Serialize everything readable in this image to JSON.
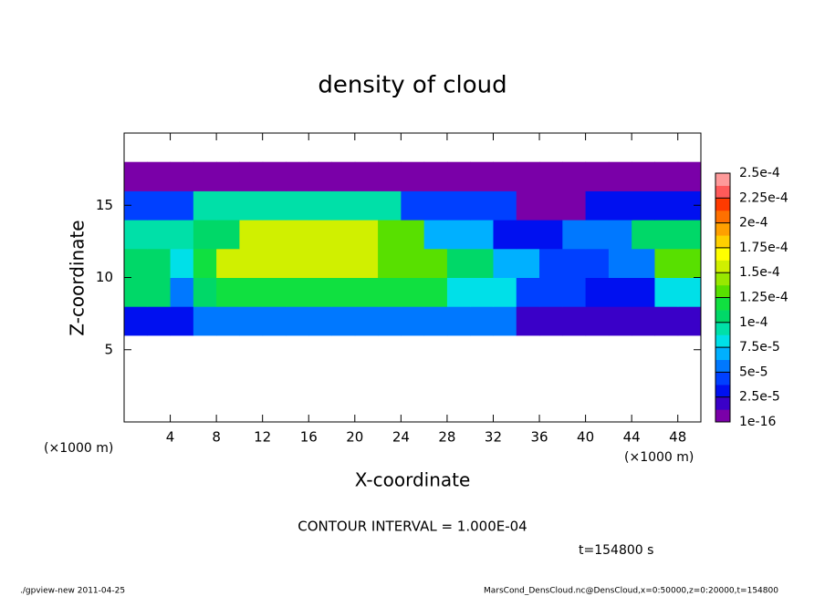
{
  "chart_data": {
    "type": "heatmap",
    "title": "density of cloud",
    "xlabel": "X-coordinate",
    "ylabel": "Z-coordinate",
    "x_unit_label_left": "(×1000 m)",
    "x_unit_label_right": "(×1000 m)",
    "contour_note": "CONTOUR INTERVAL = 1.000E-04",
    "time_label": "t=154800 s",
    "footer_left": "./gpview-new  2011-04-25",
    "footer_right": "MarsCond_DensCloud.nc@DensCloud,x=0:50000,z=0:20000,t=154800",
    "xlim": [
      0,
      50
    ],
    "ylim": [
      0,
      20
    ],
    "xticks": [
      4,
      8,
      12,
      16,
      20,
      24,
      28,
      32,
      36,
      40,
      44,
      48
    ],
    "yticks": [
      5,
      10,
      15
    ],
    "xbins": [
      0,
      2,
      4,
      6,
      8,
      10,
      12,
      14,
      16,
      18,
      20,
      22,
      24,
      26,
      28,
      30,
      32,
      34,
      36,
      38,
      40,
      42,
      44,
      46,
      48,
      50
    ],
    "zbins": [
      6,
      8,
      10,
      12,
      14,
      16,
      18
    ],
    "values": [
      [
        3e-05,
        3e-05,
        3e-05,
        5e-05,
        5e-05,
        5e-05,
        5e-05,
        5e-05,
        5e-05,
        5e-05,
        5e-05,
        5e-05,
        5e-05,
        5e-05,
        5e-05,
        5e-05,
        5e-05,
        2e-05,
        2e-05,
        2e-05,
        1.5e-05,
        1.5e-05,
        1.5e-05,
        1.5e-05,
        1.5e-05
      ],
      [
        0.0001,
        0.0001,
        6e-05,
        0.0001,
        0.000115,
        0.000115,
        0.000115,
        0.000115,
        0.000115,
        0.000115,
        0.000115,
        0.000115,
        0.000115,
        0.000115,
        8e-05,
        8e-05,
        8e-05,
        4e-05,
        4e-05,
        4e-05,
        3e-05,
        3e-05,
        3e-05,
        8e-05,
        8e-05
      ],
      [
        0.00011,
        0.00011,
        8e-05,
        0.00012,
        0.000155,
        0.000155,
        0.000155,
        0.000155,
        0.000155,
        0.000155,
        0.000155,
        0.00013,
        0.00013,
        0.00013,
        0.000105,
        0.000105,
        7e-05,
        7e-05,
        4e-05,
        4e-05,
        4e-05,
        5e-05,
        5e-05,
        0.00013,
        0.00013
      ],
      [
        9e-05,
        9e-05,
        9e-05,
        0.00011,
        0.00011,
        0.00016,
        0.00016,
        0.00016,
        0.00016,
        0.00016,
        0.00016,
        0.00013,
        0.00013,
        7e-05,
        7e-05,
        7e-05,
        3e-05,
        3e-05,
        3e-05,
        5e-05,
        5e-05,
        5e-05,
        0.00011,
        0.00011,
        0.00011
      ],
      [
        4e-05,
        4e-05,
        4e-05,
        9e-05,
        9e-05,
        9e-05,
        9e-05,
        9e-05,
        9e-05,
        9e-05,
        9e-05,
        9e-05,
        4e-05,
        4e-05,
        4e-05,
        4e-05,
        4e-05,
        1e-05,
        1e-05,
        1e-05,
        3e-05,
        3e-05,
        3e-05,
        3e-05,
        3e-05
      ],
      [
        5e-06,
        5e-06,
        5e-06,
        5e-06,
        5e-06,
        5e-06,
        5e-06,
        5e-06,
        5e-06,
        5e-06,
        5e-06,
        5e-06,
        5e-06,
        5e-06,
        5e-06,
        5e-06,
        5e-06,
        5e-06,
        5e-06,
        5e-06,
        5e-06,
        5e-06,
        5e-06,
        5e-06,
        5e-06
      ]
    ],
    "colorbar_ticks": [
      {
        "value": 1e-16,
        "label": "1e-16"
      },
      {
        "value": 2.5e-05,
        "label": "2.5e-5"
      },
      {
        "value": 5e-05,
        "label": "5e-5"
      },
      {
        "value": 7.5e-05,
        "label": "7.5e-5"
      },
      {
        "value": 0.0001,
        "label": "1e-4"
      },
      {
        "value": 0.000125,
        "label": "1.25e-4"
      },
      {
        "value": 0.00015,
        "label": "1.5e-4"
      },
      {
        "value": 0.000175,
        "label": "1.75e-4"
      },
      {
        "value": 0.0002,
        "label": "2e-4"
      },
      {
        "value": 0.000225,
        "label": "2.25e-4"
      },
      {
        "value": 0.00025,
        "label": "2.5e-4"
      }
    ],
    "colors": [
      "#7a00a8",
      "#3a00c8",
      "#0010f0",
      "#0040ff",
      "#0078ff",
      "#00b0ff",
      "#00e0e8",
      "#00e0a8",
      "#00d868",
      "#10e040",
      "#58e000",
      "#98e800",
      "#d0f000",
      "#ffff00",
      "#ffd000",
      "#ffa000",
      "#ff7000",
      "#ff3a00",
      "#ff5a5a",
      "#ff9a9a"
    ]
  }
}
